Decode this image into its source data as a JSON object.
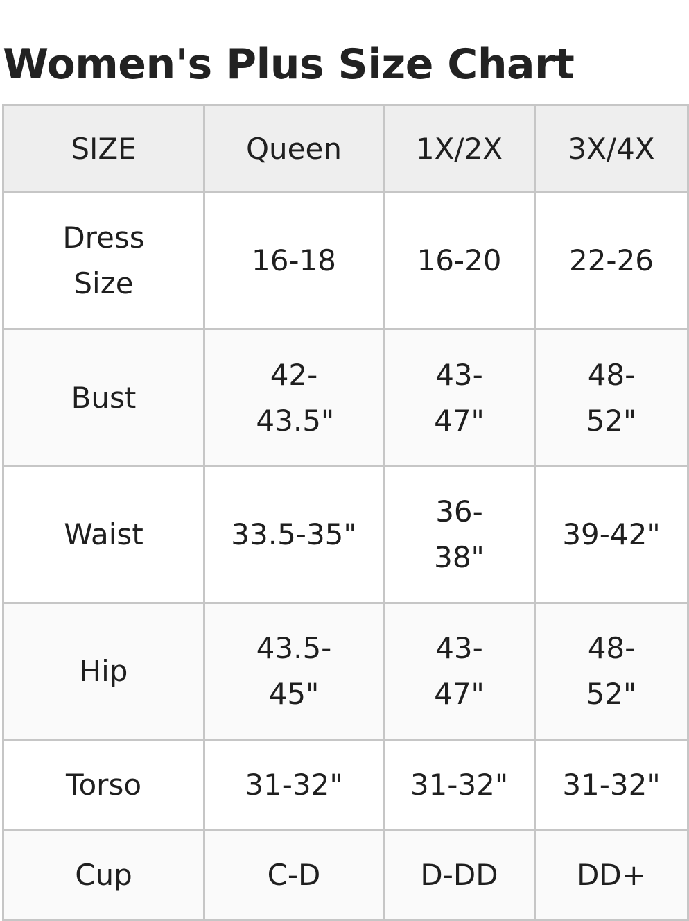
{
  "title": "Women's Plus Size Chart",
  "table": {
    "headers": [
      "SIZE",
      "Queen",
      "1X/2X",
      "3X/4X"
    ],
    "rows": [
      {
        "label": "Dress Size",
        "values": [
          "16-18",
          "16-20",
          "22-26"
        ]
      },
      {
        "label": "Bust",
        "values": [
          "42-43.5\"",
          "43-47\"",
          "48-52\""
        ]
      },
      {
        "label": "Waist",
        "values": [
          "33.5-35\"",
          "36-38\"",
          "39-42\""
        ]
      },
      {
        "label": "Hip",
        "values": [
          "43.5-45\"",
          "43-47\"",
          "48-52\""
        ]
      },
      {
        "label": "Torso",
        "values": [
          "31-32\"",
          "31-32\"",
          "31-32\""
        ]
      },
      {
        "label": "Cup",
        "values": [
          "C-D",
          "D-DD",
          "DD+"
        ]
      }
    ]
  },
  "colors": {
    "header_bg": "#eeeeee",
    "border": "#c6c6c6",
    "alt_row_bg": "#fafafa"
  }
}
